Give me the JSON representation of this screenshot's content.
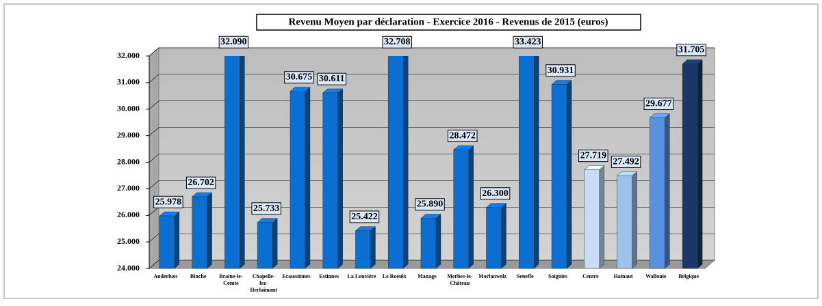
{
  "chart_data": {
    "type": "bar3d",
    "title": "Revenu Moyen par déclaration - Exercice 2016 - Revenus de 2015 (euros)",
    "categories": [
      "Anderlues",
      "Binche",
      "Braine-le-Comte",
      "Chapelle-lez-Herlaimont",
      "Ecaussinnes",
      "Estinnes",
      "La Louvière",
      "Le Roeulx",
      "Manage",
      "Merbes-le-Château",
      "Morlanwelz",
      "Seneffe",
      "Soignies",
      "Centre",
      "Hainaut",
      "Wallonie",
      "Belgique"
    ],
    "values": [
      25978,
      26702,
      32090,
      25733,
      30675,
      30611,
      25422,
      32708,
      25890,
      28472,
      26300,
      33423,
      30931,
      27719,
      27492,
      29677,
      31705
    ],
    "value_labels": [
      "25.978",
      "26.702",
      "32.090",
      "25.733",
      "30.675",
      "30.611",
      "25.422",
      "32.708",
      "25.890",
      "28.472",
      "26.300",
      "33.423",
      "30.931",
      "27.719",
      "27.492",
      "29.677",
      "31.705"
    ],
    "colors": [
      "#0a6fd1",
      "#0a6fd1",
      "#0a6fd1",
      "#0a6fd1",
      "#0a6fd1",
      "#0a6fd1",
      "#0a6fd1",
      "#0a6fd1",
      "#0a6fd1",
      "#0a6fd1",
      "#0a6fd1",
      "#0a6fd1",
      "#0a6fd1",
      "#c9dcf3",
      "#9ec2ea",
      "#5b90dc",
      "#1a3768"
    ],
    "ylim": [
      24000,
      32000
    ],
    "yticks": [
      {
        "value": 24000,
        "label": "24.000"
      },
      {
        "value": 25000,
        "label": "25.000"
      },
      {
        "value": 26000,
        "label": "26.000"
      },
      {
        "value": 27000,
        "label": "27.000"
      },
      {
        "value": 28000,
        "label": "28.000"
      },
      {
        "value": 29000,
        "label": "29.000"
      },
      {
        "value": 30000,
        "label": "30.000"
      },
      {
        "value": 31000,
        "label": "31.000"
      },
      {
        "value": 32000,
        "label": "32.000"
      }
    ],
    "grid": true
  }
}
